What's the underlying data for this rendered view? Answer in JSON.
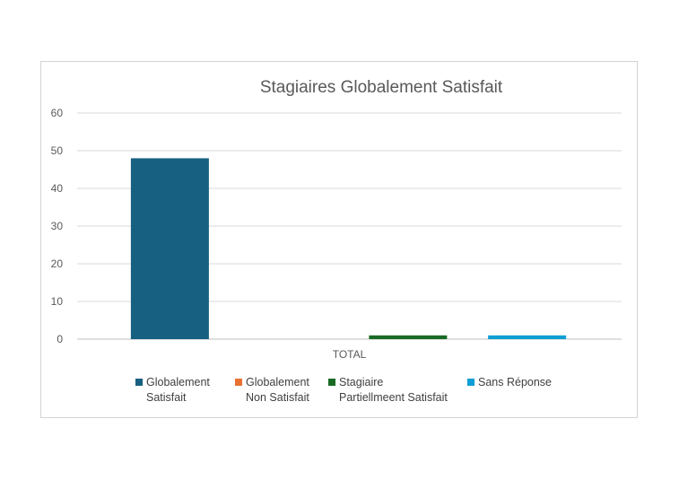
{
  "chart_data": {
    "type": "bar",
    "title": "Stagiaires Globalement Satisfait",
    "categories": [
      "TOTAL"
    ],
    "ylim": [
      0,
      60
    ],
    "yticks": [
      0,
      10,
      20,
      30,
      40,
      50,
      60
    ],
    "grid": true,
    "legend_position": "bottom",
    "series": [
      {
        "name": "Globalement Satisfait",
        "values": [
          48
        ],
        "color": "#176082",
        "legend_lines": [
          "Globalement",
          "Satisfait"
        ]
      },
      {
        "name": "Globalement Non Satisfait",
        "values": [
          0
        ],
        "color": "#E97132",
        "legend_lines": [
          "Globalement",
          "Non Satisfait"
        ]
      },
      {
        "name": "Stagiaire Partiellmeent Satisfait",
        "values": [
          1
        ],
        "color": "#196B24",
        "legend_lines": [
          "Stagiaire",
          "Partiellmeent Satisfait"
        ]
      },
      {
        "name": "Sans Réponse",
        "values": [
          1
        ],
        "color": "#0F9ED5",
        "legend_lines": [
          "Sans Réponse"
        ]
      }
    ]
  }
}
